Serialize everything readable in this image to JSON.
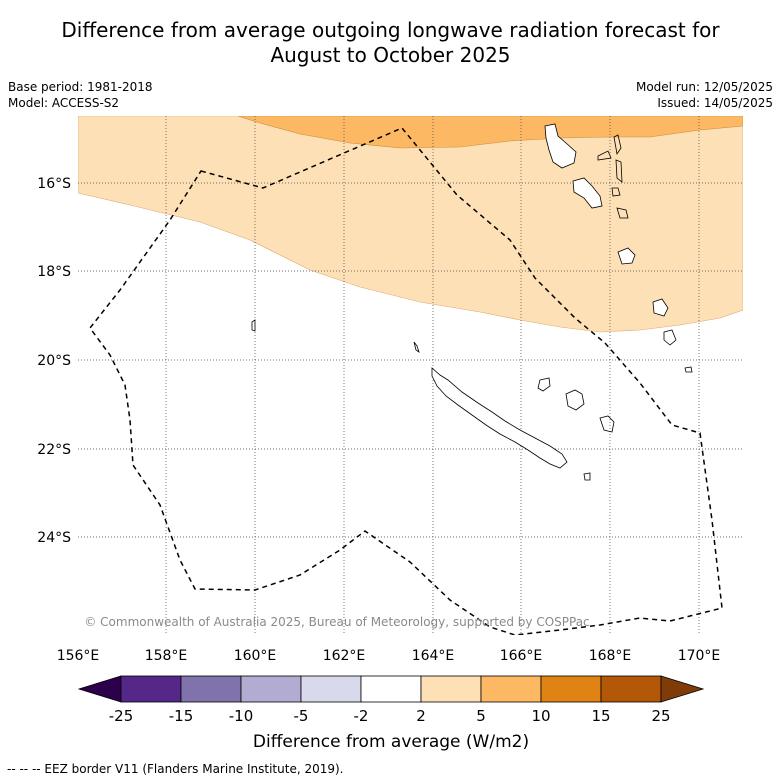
{
  "title_line1": "Difference from average outgoing longwave radiation forecast for",
  "title_line2": "August to October 2025",
  "meta": {
    "base_period": "Base period: 1981-2018",
    "model": "Model: ACCESS-S2",
    "model_run": "Model run: 12/05/2025",
    "issued": "Issued: 14/05/2025"
  },
  "map": {
    "lon_labels": [
      "156°E",
      "158°E",
      "160°E",
      "162°E",
      "164°E",
      "166°E",
      "168°E",
      "170°E"
    ],
    "lat_labels": [
      "16°S",
      "18°S",
      "20°S",
      "22°S",
      "24°S"
    ],
    "copyright": "© Commonwealth of Australia 2025, Bureau of Meteorology, supported by COSPPac"
  },
  "colorbar": {
    "labels": [
      "-25",
      "-15",
      "-10",
      "-5",
      "-2",
      "2",
      "5",
      "10",
      "15",
      "25"
    ],
    "colors": [
      "#2d004b",
      "#542788",
      "#8073ac",
      "#b2abd2",
      "#d8daeb",
      "#ffffff",
      "#fee0b6",
      "#fdb863",
      "#e08214",
      "#b35806",
      "#7f3b08"
    ],
    "title": "Difference from average (W/m2)"
  },
  "footer": "-- -- -- EEZ border V11 (Flanders Marine Institute, 2019)."
}
